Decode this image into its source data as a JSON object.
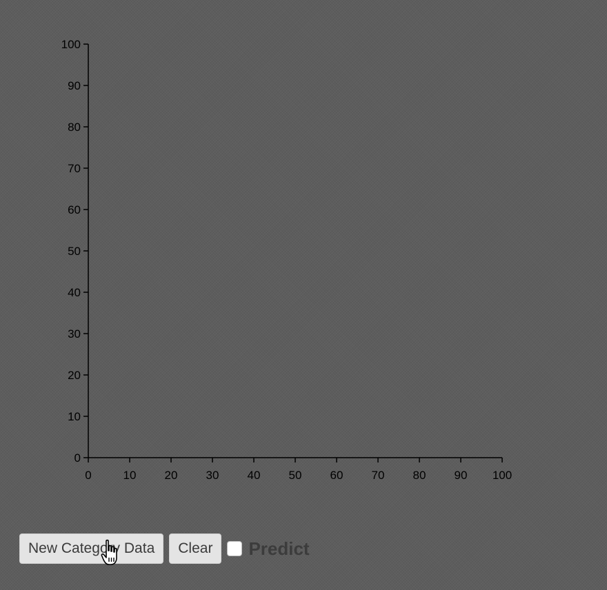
{
  "controls": {
    "new_category_button": "New Category Data",
    "clear_button": "Clear",
    "predict_label": "Predict",
    "predict_checked": false
  },
  "cursor_icon": "hand-pointer-icon",
  "chart_data": {
    "type": "scatter",
    "title": "",
    "xlabel": "",
    "ylabel": "",
    "xlim": [
      0,
      100
    ],
    "ylim": [
      0,
      100
    ],
    "x_ticks": [
      "0",
      "10",
      "20",
      "30",
      "40",
      "50",
      "60",
      "70",
      "80",
      "90",
      "100"
    ],
    "y_ticks": [
      "0",
      "10",
      "20",
      "30",
      "40",
      "50",
      "60",
      "70",
      "80",
      "90",
      "100"
    ],
    "grid": false,
    "series": []
  }
}
